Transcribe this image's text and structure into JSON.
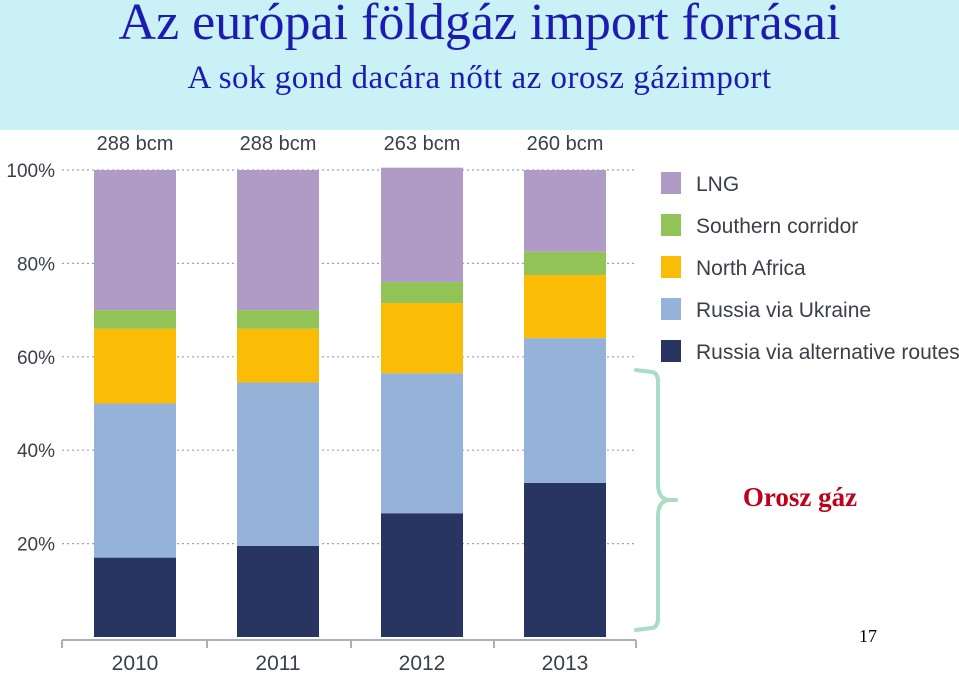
{
  "header": {
    "title": "Az európai földgáz import forrásai",
    "subtitle": "A sok gond dacára nőtt az orosz gázimport"
  },
  "annotation": "Orosz gáz",
  "page_number": "17",
  "chart_data": {
    "type": "bar",
    "stacked": true,
    "categories": [
      "2010",
      "2011",
      "2012",
      "2013"
    ],
    "totals": [
      "288 bcm",
      "288 bcm",
      "263 bcm",
      "260 bcm"
    ],
    "y_ticks": [
      "20%",
      "40%",
      "60%",
      "80%",
      "100%"
    ],
    "ylim": [
      0,
      100
    ],
    "grid": "dotted horizontal",
    "legend_position": "right",
    "series": [
      {
        "name": "Russia via alternative routes",
        "color": "#283561",
        "values": [
          17,
          19.5,
          26.5,
          33
        ]
      },
      {
        "name": "Russia via Ukraine",
        "color": "#95b2d9",
        "values": [
          33,
          35,
          30,
          31
        ]
      },
      {
        "name": "North Africa",
        "color": "#fbbc05",
        "values": [
          16,
          11.5,
          15,
          13.5
        ]
      },
      {
        "name": "Southern corridor",
        "color": "#92c356",
        "values": [
          4,
          4,
          4.5,
          5
        ]
      },
      {
        "name": "LNG",
        "color": "#af9bc6",
        "values": [
          30,
          30,
          24.5,
          17.5
        ]
      }
    ]
  }
}
